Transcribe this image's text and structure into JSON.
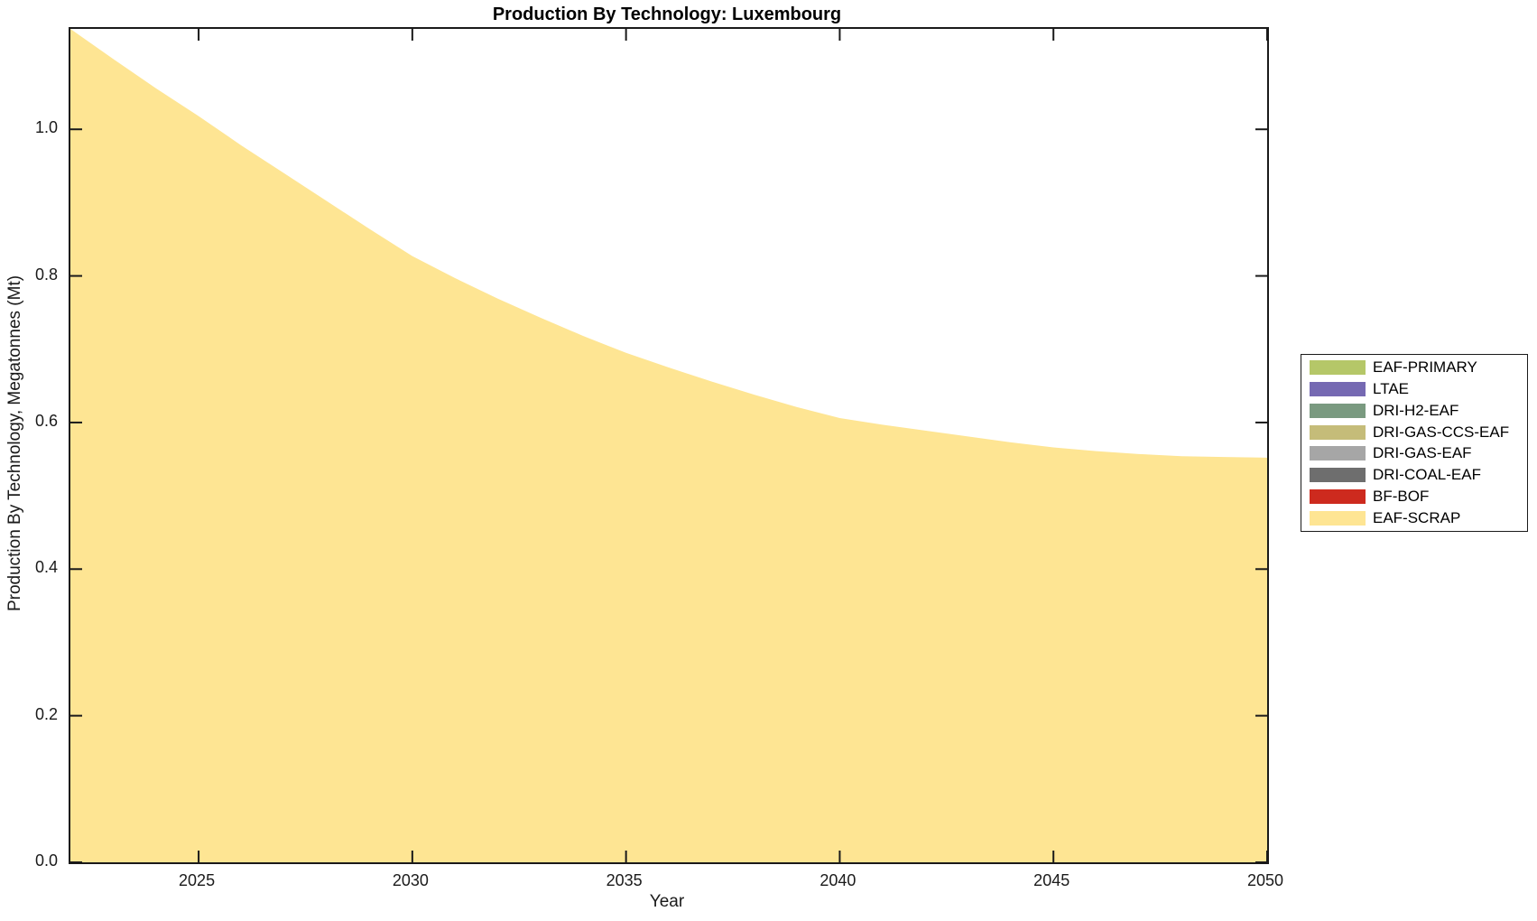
{
  "chart_data": {
    "type": "area",
    "title": "Production By Technology: Luxembourg",
    "xlabel": "Year",
    "ylabel": "Production By Technology, Megatonnes (Mt)",
    "xlim": [
      2022,
      2050
    ],
    "ylim": [
      0,
      1.137
    ],
    "grid": false,
    "legend_position": "right-outside",
    "tick_direction": "in",
    "x": [
      2022,
      2023,
      2024,
      2025,
      2026,
      2027,
      2028,
      2029,
      2030,
      2031,
      2032,
      2033,
      2034,
      2035,
      2036,
      2037,
      2038,
      2039,
      2040,
      2041,
      2042,
      2043,
      2044,
      2045,
      2046,
      2047,
      2048,
      2049,
      2050
    ],
    "xticks": {
      "values": [
        2025,
        2030,
        2035,
        2040,
        2045,
        2050
      ],
      "labels": [
        "2025",
        "2030",
        "2035",
        "2040",
        "2045",
        "2050"
      ]
    },
    "yticks": {
      "values": [
        0,
        0.2,
        0.4,
        0.6,
        0.8,
        1.0
      ],
      "labels": [
        "0.0",
        "0.2",
        "0.4",
        "0.6",
        "0.8",
        "1.0"
      ]
    },
    "series": [
      {
        "name": "EAF-PRIMARY",
        "color": "#b5c768",
        "values": [
          0,
          0,
          0,
          0,
          0,
          0,
          0,
          0,
          0,
          0,
          0,
          0,
          0,
          0,
          0,
          0,
          0,
          0,
          0,
          0,
          0,
          0,
          0,
          0,
          0,
          0,
          0,
          0,
          0
        ]
      },
      {
        "name": "LTAE",
        "color": "#7569b2",
        "values": [
          0,
          0,
          0,
          0,
          0,
          0,
          0,
          0,
          0,
          0,
          0,
          0,
          0,
          0,
          0,
          0,
          0,
          0,
          0,
          0,
          0,
          0,
          0,
          0,
          0,
          0,
          0,
          0,
          0
        ]
      },
      {
        "name": "DRI-H2-EAF",
        "color": "#7a9a80",
        "values": [
          0,
          0,
          0,
          0,
          0,
          0,
          0,
          0,
          0,
          0,
          0,
          0,
          0,
          0,
          0,
          0,
          0,
          0,
          0,
          0,
          0,
          0,
          0,
          0,
          0,
          0,
          0,
          0,
          0
        ]
      },
      {
        "name": "DRI-GAS-CCS-EAF",
        "color": "#c5bc79",
        "values": [
          0,
          0,
          0,
          0,
          0,
          0,
          0,
          0,
          0,
          0,
          0,
          0,
          0,
          0,
          0,
          0,
          0,
          0,
          0,
          0,
          0,
          0,
          0,
          0,
          0,
          0,
          0,
          0,
          0
        ]
      },
      {
        "name": "DRI-GAS-EAF",
        "color": "#a6a6a6",
        "values": [
          0,
          0,
          0,
          0,
          0,
          0,
          0,
          0,
          0,
          0,
          0,
          0,
          0,
          0,
          0,
          0,
          0,
          0,
          0,
          0,
          0,
          0,
          0,
          0,
          0,
          0,
          0,
          0,
          0
        ]
      },
      {
        "name": "DRI-COAL-EAF",
        "color": "#6e6e6e",
        "values": [
          0,
          0,
          0,
          0,
          0,
          0,
          0,
          0,
          0,
          0,
          0,
          0,
          0,
          0,
          0,
          0,
          0,
          0,
          0,
          0,
          0,
          0,
          0,
          0,
          0,
          0,
          0,
          0,
          0
        ]
      },
      {
        "name": "BF-BOF",
        "color": "#cd2a1e",
        "values": [
          0,
          0,
          0,
          0,
          0,
          0,
          0,
          0,
          0,
          0,
          0,
          0,
          0,
          0,
          0,
          0,
          0,
          0,
          0,
          0,
          0,
          0,
          0,
          0,
          0,
          0,
          0,
          0,
          0
        ]
      },
      {
        "name": "EAF-SCRAP",
        "color": "#fee593",
        "values": [
          1.137,
          1.096,
          1.056,
          1.018,
          0.978,
          0.94,
          0.902,
          0.864,
          0.827,
          0.797,
          0.769,
          0.743,
          0.718,
          0.695,
          0.675,
          0.656,
          0.638,
          0.621,
          0.606,
          0.597,
          0.589,
          0.581,
          0.573,
          0.566,
          0.561,
          0.557,
          0.554,
          0.553,
          0.552
        ]
      }
    ],
    "axis_color": "#1a1a1a",
    "text_color": "#1a1a1a",
    "background_color": "#ffffff"
  }
}
